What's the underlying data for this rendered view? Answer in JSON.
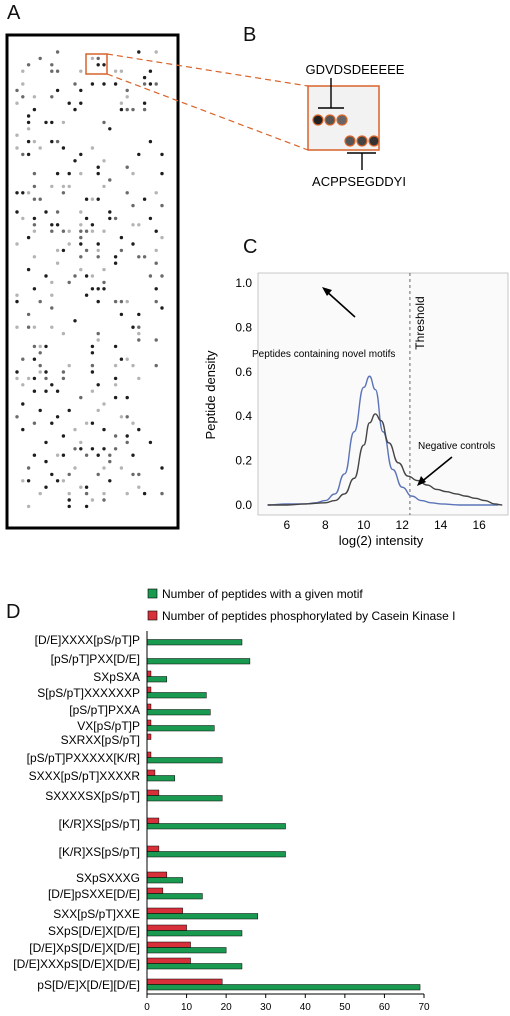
{
  "panels": {
    "a": "A",
    "b": "B",
    "c": "C",
    "d": "D"
  },
  "colors": {
    "orange": "#d9632a",
    "blue_curve": "#5b74b8",
    "gray_curve": "#444444",
    "green": "#1a9a50",
    "red": "#d8303a"
  },
  "panel_b": {
    "peptide_top": "GDVDSDEEEEE",
    "peptide_bottom": "ACPPSEGDDYI"
  },
  "chart_data": [
    {
      "type": "line",
      "xlabel": "log(2) intensity",
      "ylabel": "Peptide density",
      "xlim": [
        4.5,
        17.5
      ],
      "ylim": [
        0,
        1.0
      ],
      "xticks": [
        6,
        8,
        10,
        12,
        14,
        16
      ],
      "yticks": [
        0.0,
        0.2,
        0.4,
        0.6,
        0.8,
        1.0
      ],
      "threshold": {
        "x": 12.4,
        "label": "Threshold"
      },
      "annotations": [
        "Peptides containing novel motifs",
        "Negative controls"
      ],
      "series": [
        {
          "name": "Peptides containing novel motifs",
          "color": "#5b74b8",
          "x": [
            5,
            6,
            7,
            7.5,
            8,
            8.5,
            9,
            9.5,
            10,
            10.3,
            10.6,
            11,
            11.5,
            12,
            12.5,
            13,
            13.5,
            14,
            15,
            17
          ],
          "y": [
            0,
            0.005,
            0.005,
            0.01,
            0.02,
            0.05,
            0.14,
            0.33,
            0.53,
            0.58,
            0.52,
            0.33,
            0.16,
            0.08,
            0.04,
            0.02,
            0.01,
            0.005,
            0,
            0
          ]
        },
        {
          "name": "Negative controls",
          "color": "#444444",
          "x": [
            5,
            6,
            7,
            8,
            8.5,
            9,
            9.5,
            10,
            10.3,
            10.6,
            10.9,
            11.3,
            11.8,
            12.3,
            12.8,
            13.3,
            13.8,
            14.3,
            14.8,
            15.3,
            15.8,
            16.3,
            16.8,
            17.2
          ],
          "y": [
            0,
            0,
            0.005,
            0.01,
            0.02,
            0.05,
            0.12,
            0.27,
            0.37,
            0.41,
            0.38,
            0.28,
            0.19,
            0.13,
            0.11,
            0.09,
            0.07,
            0.06,
            0.05,
            0.04,
            0.03,
            0.02,
            0.005,
            0
          ]
        }
      ]
    },
    {
      "type": "bar",
      "orientation": "horizontal",
      "xlim": [
        0,
        70
      ],
      "xticks": [
        0,
        10,
        20,
        30,
        40,
        50,
        60,
        70
      ],
      "categories": [
        "[D/E]XXXX[pS/pT]P",
        "[pS/pT]PXX[D/E]",
        "SXpSXA",
        "S[pS/pT]XXXXXXP",
        "[pS/pT]PXXA",
        "VX[pS/pT]P",
        "SXRXX[pS/pT]",
        "[pS/pT]PXXXXX[K/R]",
        "SXXX[pS/pT]XXXXR",
        "SXXXXSX[pS/pT]",
        "[K/R]XS[pS/pT]",
        "[K/R]XS[pS/pT]",
        "SXpSXXXG",
        "[D/E]pSXXE[D/E]",
        "SXX[pS/pT]XXE",
        "SXpS[D/E]X[D/E]",
        "[D/E]XpS[D/E]X[D/E]",
        "[D/E]XXXpS[D/E]X[D/E]",
        "pS[D/E]X[D/E][D/E]"
      ],
      "series": [
        {
          "name": "Number of peptides with a given motif",
          "color": "#1a9a50",
          "values": [
            24,
            26,
            5,
            15,
            16,
            17,
            0,
            19,
            7,
            19,
            35,
            35,
            9,
            14,
            28,
            24,
            20,
            24,
            69
          ]
        },
        {
          "name": "Number of peptides phosphorylated by Casein Kinase I",
          "color": "#d8303a",
          "values": [
            0,
            0,
            1,
            1,
            1,
            1,
            1,
            1,
            2,
            3,
            3,
            3,
            5,
            4,
            9,
            10,
            11,
            11,
            19
          ]
        }
      ]
    }
  ]
}
